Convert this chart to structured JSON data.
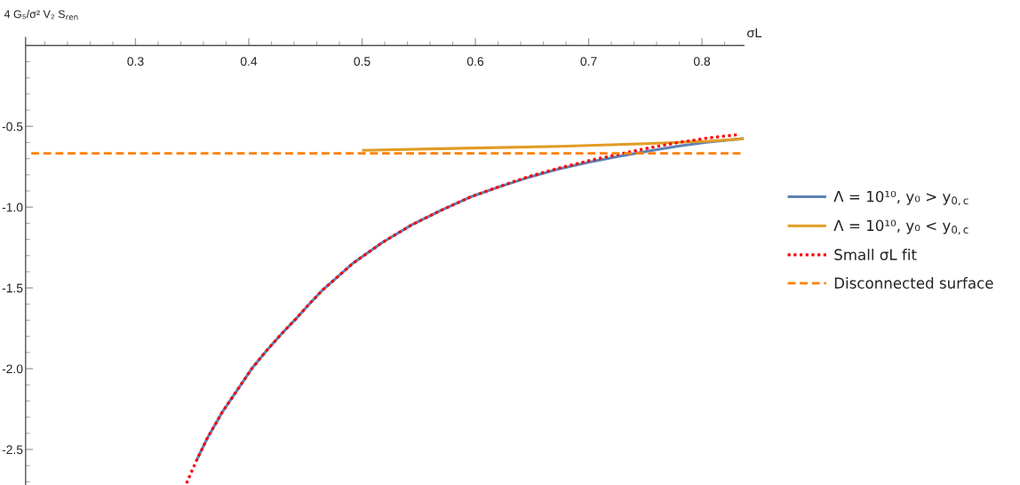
{
  "chart_data": {
    "type": "line",
    "xlabel": "σL",
    "ylabel": "4 G₅/σ² V₂ S$_{ren}$",
    "xlim": [
      0.203,
      0.837
    ],
    "ylim": [
      -2.72,
      0.05
    ],
    "xticks": [
      {
        "value": 0.22,
        "label": null
      },
      {
        "value": 0.24,
        "label": null
      },
      {
        "value": 0.26,
        "label": null
      },
      {
        "value": 0.28,
        "label": null
      },
      0.3,
      {
        "value": 0.32,
        "label": null
      },
      {
        "value": 0.34,
        "label": null
      },
      {
        "value": 0.36,
        "label": null
      },
      {
        "value": 0.38,
        "label": null
      },
      0.4,
      {
        "value": 0.42,
        "label": null
      },
      {
        "value": 0.44,
        "label": null
      },
      {
        "value": 0.46,
        "label": null
      },
      {
        "value": 0.48,
        "label": null
      },
      0.5,
      {
        "value": 0.52,
        "label": null
      },
      {
        "value": 0.54,
        "label": null
      },
      {
        "value": 0.56,
        "label": null
      },
      {
        "value": 0.58,
        "label": null
      },
      0.6,
      {
        "value": 0.62,
        "label": null
      },
      {
        "value": 0.64,
        "label": null
      },
      {
        "value": 0.66,
        "label": null
      },
      {
        "value": 0.68,
        "label": null
      },
      0.7,
      {
        "value": 0.72,
        "label": null
      },
      {
        "value": 0.74,
        "label": null
      },
      {
        "value": 0.76,
        "label": null
      },
      {
        "value": 0.78,
        "label": null
      },
      0.8,
      {
        "value": 0.82,
        "label": null
      }
    ],
    "yticks": [
      {
        "value": -0.1,
        "label": null
      },
      {
        "value": -0.2,
        "label": null
      },
      {
        "value": -0.3,
        "label": null
      },
      {
        "value": -0.4,
        "label": null
      },
      -0.5,
      {
        "value": -0.6,
        "label": null
      },
      {
        "value": -0.7,
        "label": null
      },
      {
        "value": -0.8,
        "label": null
      },
      {
        "value": -0.9,
        "label": null
      },
      {
        "value": -1.0,
        "label": "-1.0"
      },
      {
        "value": -1.1,
        "label": null
      },
      {
        "value": -1.2,
        "label": null
      },
      {
        "value": -1.3,
        "label": null
      },
      {
        "value": -1.4,
        "label": null
      },
      -1.5,
      {
        "value": -1.6,
        "label": null
      },
      {
        "value": -1.7,
        "label": null
      },
      {
        "value": -1.8,
        "label": null
      },
      {
        "value": -1.9,
        "label": null
      },
      {
        "value": -2.0,
        "label": "-2.0"
      },
      {
        "value": -2.1,
        "label": null
      },
      {
        "value": -2.2,
        "label": null
      },
      {
        "value": -2.3,
        "label": null
      },
      {
        "value": -2.4,
        "label": null
      },
      -2.5,
      {
        "value": -2.6,
        "label": null
      },
      {
        "value": -2.7,
        "label": null
      }
    ],
    "legend": "right",
    "series": [
      {
        "name": "Λ = 10¹⁰, y₀ > y$_{0,c}$",
        "color": "#5e81b5",
        "line_style": "solid",
        "x": [
          0.354,
          0.3634,
          0.3765,
          0.3896,
          0.4026,
          0.4157,
          0.4288,
          0.4418,
          0.4536,
          0.4653,
          0.4915,
          0.5176,
          0.5438,
          0.57,
          0.5961,
          0.6222,
          0.6484,
          0.6745,
          0.7006,
          0.7268,
          0.753,
          0.779,
          0.8053,
          0.837
        ],
        "values": [
          -2.566,
          -2.43,
          -2.27,
          -2.135,
          -2.0,
          -1.888,
          -1.785,
          -1.69,
          -1.598,
          -1.512,
          -1.35,
          -1.22,
          -1.11,
          -1.019,
          -0.936,
          -0.872,
          -0.813,
          -0.762,
          -0.722,
          -0.685,
          -0.652,
          -0.622,
          -0.598,
          -0.575
        ]
      },
      {
        "name": "Λ = 10¹⁰, y₀ < y$_{0,c}$",
        "color": "#e19c24",
        "line_style": "solid",
        "x": [
          0.5,
          0.6,
          0.675,
          0.75,
          0.805,
          0.837
        ],
        "values": [
          -0.648,
          -0.634,
          -0.624,
          -0.607,
          -0.592,
          -0.577
        ]
      },
      {
        "name": "Small σL fit",
        "color": "#ff0000",
        "line_style": "dotted",
        "x": [
          0.345,
          0.354,
          0.3634,
          0.3765,
          0.3896,
          0.4026,
          0.4157,
          0.4288,
          0.4418,
          0.4536,
          0.4653,
          0.4915,
          0.5176,
          0.5438,
          0.57,
          0.5961,
          0.6222,
          0.6484,
          0.6745,
          0.7006,
          0.7268,
          0.753,
          0.779,
          0.8053,
          0.831
        ],
        "values": [
          -2.71,
          -2.566,
          -2.43,
          -2.27,
          -2.135,
          -2.0,
          -1.888,
          -1.785,
          -1.69,
          -1.598,
          -1.512,
          -1.35,
          -1.22,
          -1.11,
          -1.019,
          -0.936,
          -0.87,
          -0.808,
          -0.757,
          -0.712,
          -0.672,
          -0.634,
          -0.6,
          -0.572,
          -0.552
        ]
      },
      {
        "name": "Disconnected surface",
        "color": "#ff8000",
        "line_style": "dashed",
        "x": [
          0.208,
          0.834
        ],
        "values": [
          -0.667,
          -0.667
        ]
      }
    ]
  }
}
